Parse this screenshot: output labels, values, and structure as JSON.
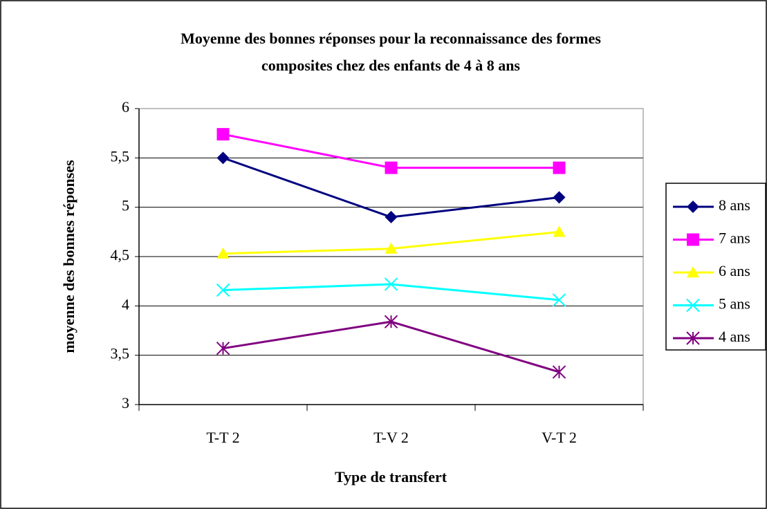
{
  "chart_data": {
    "type": "line",
    "title": [
      "Moyenne des bonnes réponses pour la reconnaissance des formes",
      "composites chez des enfants de 4 à 8 ans"
    ],
    "x_label": "Type de transfert",
    "y_label": "moyenne des bonnes réponses",
    "categories": [
      "T-T 2",
      "T-V 2",
      "V-T 2"
    ],
    "series": [
      {
        "name": "8 ans",
        "color": "#000080",
        "marker": "diamond",
        "values": [
          5.5,
          4.9,
          5.1
        ]
      },
      {
        "name": "7 ans",
        "color": "#ff00ff",
        "marker": "square",
        "values": [
          5.74,
          5.4,
          5.4
        ]
      },
      {
        "name": "6 ans",
        "color": "#ffff00",
        "marker": "triangle",
        "values": [
          4.53,
          4.58,
          4.75
        ]
      },
      {
        "name": "5 ans",
        "color": "#00ffff",
        "marker": "x",
        "values": [
          4.16,
          4.22,
          4.06
        ]
      },
      {
        "name": "4 ans",
        "color": "#800080",
        "marker": "star",
        "values": [
          3.57,
          3.84,
          3.33
        ]
      }
    ],
    "ylim": [
      3,
      6
    ],
    "yticks": [
      3,
      {
        "value": 3.5,
        "label": "3,5"
      },
      4,
      {
        "value": 4.5,
        "label": "4,5"
      },
      5,
      {
        "value": 5.5,
        "label": "5,5"
      },
      6
    ],
    "grid": true,
    "legend": "right"
  }
}
